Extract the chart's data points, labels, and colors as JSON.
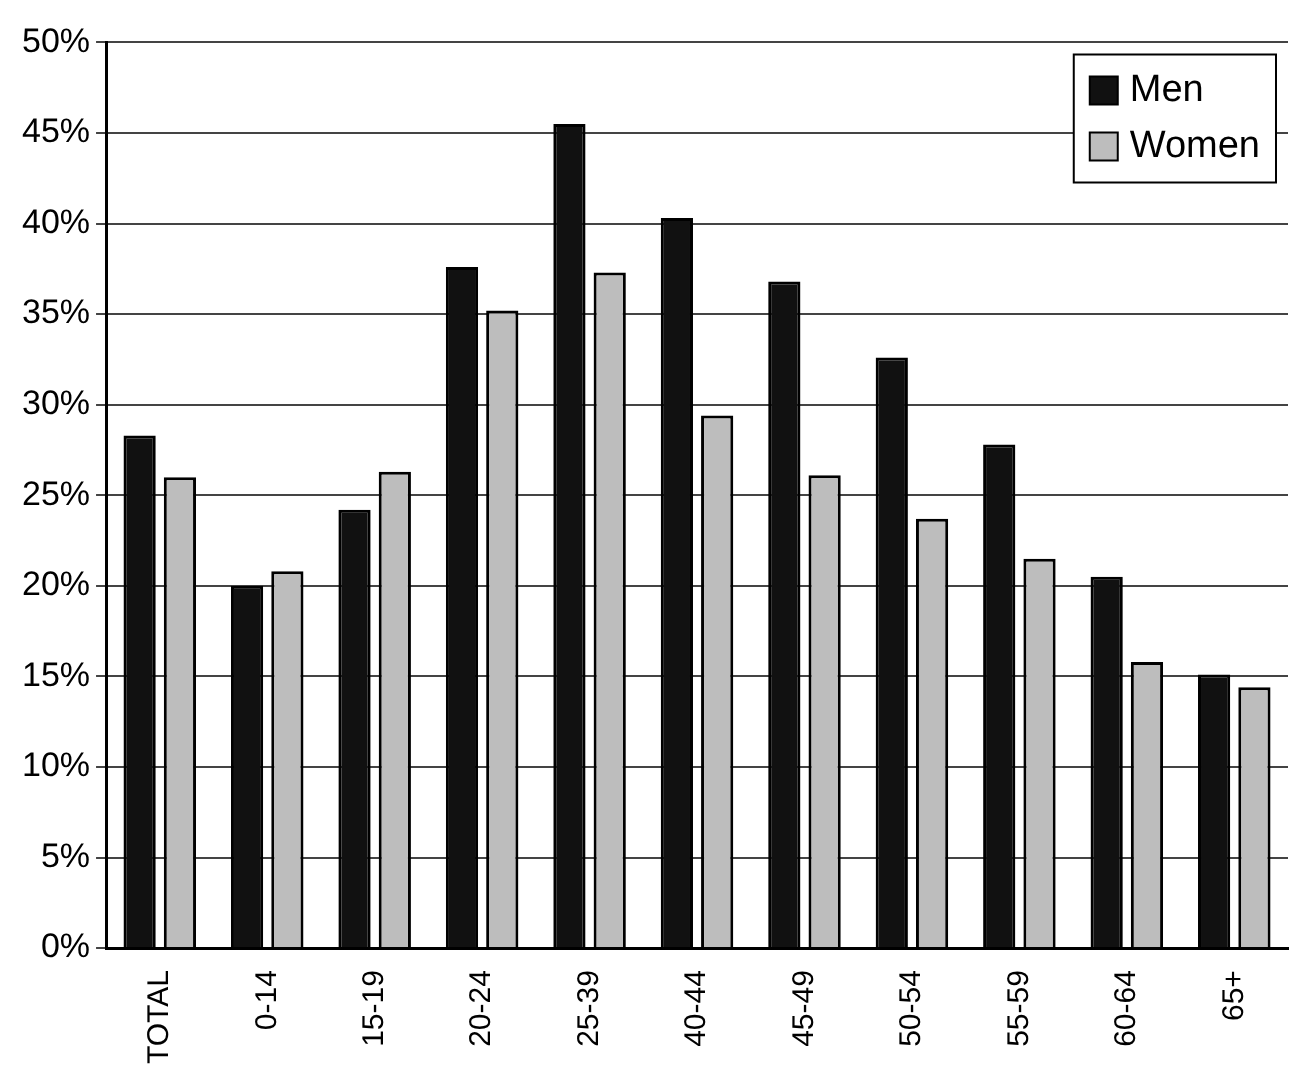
{
  "chart_data": {
    "type": "bar",
    "categories": [
      "TOTAL",
      "0-14",
      "15-19",
      "20-24",
      "25-39",
      "40-44",
      "45-49",
      "50-54",
      "55-59",
      "60-64",
      "65+"
    ],
    "series": [
      {
        "name": "Men",
        "color": "#111111",
        "values": [
          28.3,
          20,
          24.2,
          37.6,
          45.5,
          40.3,
          36.8,
          32.6,
          27.8,
          20.5,
          15.1
        ]
      },
      {
        "name": "Women",
        "color": "#bdbdbd",
        "values": [
          26,
          20.8,
          26.3,
          35.2,
          37.3,
          29.4,
          26.1,
          23.7,
          21.5,
          15.8,
          14.4
        ]
      }
    ],
    "ylim": [
      0,
      50
    ],
    "yticks": [
      {
        "value": 0,
        "label": "0%"
      },
      {
        "value": 5,
        "label": "5%"
      },
      {
        "value": 10,
        "label": "10%"
      },
      {
        "value": 15,
        "label": "15%"
      },
      {
        "value": 20,
        "label": "20%"
      },
      {
        "value": 25,
        "label": "25%"
      },
      {
        "value": 30,
        "label": "30%"
      },
      {
        "value": 35,
        "label": "35%"
      },
      {
        "value": 40,
        "label": "40%"
      },
      {
        "value": 45,
        "label": "45%"
      },
      {
        "value": 50,
        "label": "50%"
      }
    ],
    "grid": "y",
    "legend": "top right"
  }
}
